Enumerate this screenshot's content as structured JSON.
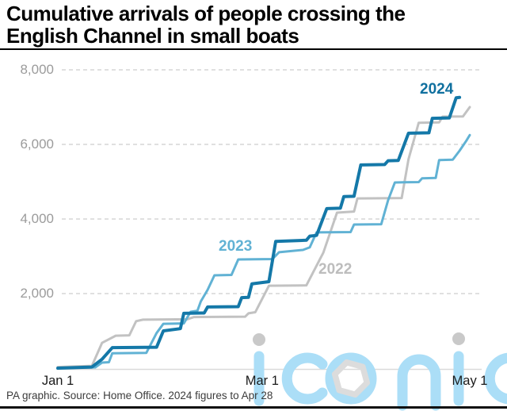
{
  "header": {
    "title_line1": "Cumulative arrivals of people crossing the",
    "title_line2": "English Channel in small boats"
  },
  "footer": {
    "source": "PA graphic. Source: Home Office. 2024 figures to Apr 28"
  },
  "watermark": {
    "text": "iconic",
    "color": "#abdef7",
    "dot_color": "#c9c9c9"
  },
  "chart_data": {
    "type": "line",
    "title": "Cumulative arrivals of people crossing the English Channel in small boats",
    "xlabel": "",
    "ylabel": "",
    "x_axis": {
      "unit": "days from Jan 1",
      "range_days": [
        0,
        121
      ],
      "ticks": [
        {
          "label": "Jan 1",
          "day": 0
        },
        {
          "label": "Mar 1",
          "day": 60
        },
        {
          "label": "May 1",
          "day": 121
        }
      ]
    },
    "y_axis": {
      "ylim": [
        0,
        8000
      ],
      "gridlines": "dashed",
      "grid_color": "#d5d5d5",
      "axis_line_color": "#dadada",
      "ticks": [
        {
          "label": "8,000",
          "value": 8000
        },
        {
          "label": "6,000",
          "value": 6000
        },
        {
          "label": "4,000",
          "value": 4000
        },
        {
          "label": "2,000",
          "value": 2000
        }
      ]
    },
    "legend_position": "inline-labels",
    "series": [
      {
        "name": "2022",
        "color": "#c2c2c2",
        "width": 3,
        "points": [
          [
            0,
            30
          ],
          [
            10,
            60
          ],
          [
            13,
            680
          ],
          [
            17,
            870
          ],
          [
            21,
            880
          ],
          [
            23,
            1260
          ],
          [
            25,
            1300
          ],
          [
            38,
            1310
          ],
          [
            40,
            1370
          ],
          [
            55,
            1380
          ],
          [
            56,
            1470
          ],
          [
            58,
            1500
          ],
          [
            62,
            2210
          ],
          [
            73,
            2220
          ],
          [
            78,
            3100
          ],
          [
            82,
            4170
          ],
          [
            87,
            4200
          ],
          [
            88,
            4550
          ],
          [
            101,
            4560
          ],
          [
            103,
            5600
          ],
          [
            106,
            6580
          ],
          [
            112,
            6590
          ],
          [
            113,
            6745
          ],
          [
            119,
            6750
          ],
          [
            121,
            7000
          ]
        ]
      },
      {
        "name": "2023",
        "color": "#61b2d4",
        "width": 3,
        "points": [
          [
            0,
            0
          ],
          [
            11,
            20
          ],
          [
            13,
            150
          ],
          [
            15,
            160
          ],
          [
            16,
            400
          ],
          [
            26,
            410
          ],
          [
            29,
            940
          ],
          [
            31,
            1190
          ],
          [
            37,
            1200
          ],
          [
            39,
            1510
          ],
          [
            41,
            1540
          ],
          [
            42,
            1790
          ],
          [
            44,
            2100
          ],
          [
            46,
            2490
          ],
          [
            51,
            2500
          ],
          [
            53,
            2915
          ],
          [
            63,
            2925
          ],
          [
            65,
            3110
          ],
          [
            72,
            3170
          ],
          [
            74,
            3240
          ],
          [
            76,
            3640
          ],
          [
            86,
            3650
          ],
          [
            87,
            3850
          ],
          [
            95,
            3860
          ],
          [
            97,
            4500
          ],
          [
            99,
            4980
          ],
          [
            106,
            4990
          ],
          [
            107,
            5090
          ],
          [
            111,
            5100
          ],
          [
            112,
            5580
          ],
          [
            116,
            5590
          ],
          [
            118,
            5830
          ],
          [
            120,
            6100
          ],
          [
            121,
            6250
          ]
        ]
      },
      {
        "name": "2024",
        "color": "#1478a8",
        "width": 4,
        "points": [
          [
            0,
            0
          ],
          [
            10,
            30
          ],
          [
            13,
            240
          ],
          [
            16,
            550
          ],
          [
            29,
            560
          ],
          [
            31,
            1000
          ],
          [
            36,
            1060
          ],
          [
            37,
            1470
          ],
          [
            43,
            1480
          ],
          [
            44,
            1640
          ],
          [
            53,
            1650
          ],
          [
            54,
            1890
          ],
          [
            56,
            1900
          ],
          [
            57,
            2260
          ],
          [
            62,
            2320
          ],
          [
            64,
            3400
          ],
          [
            73,
            3430
          ],
          [
            74,
            3540
          ],
          [
            76,
            3560
          ],
          [
            79,
            4280
          ],
          [
            83,
            4290
          ],
          [
            84,
            4600
          ],
          [
            87,
            4610
          ],
          [
            89,
            5450
          ],
          [
            96,
            5460
          ],
          [
            97,
            5560
          ],
          [
            100,
            5570
          ],
          [
            103,
            6300
          ],
          [
            109,
            6310
          ],
          [
            110,
            6700
          ],
          [
            115,
            6710
          ],
          [
            117,
            7250
          ],
          [
            118,
            7260
          ]
        ]
      }
    ]
  }
}
